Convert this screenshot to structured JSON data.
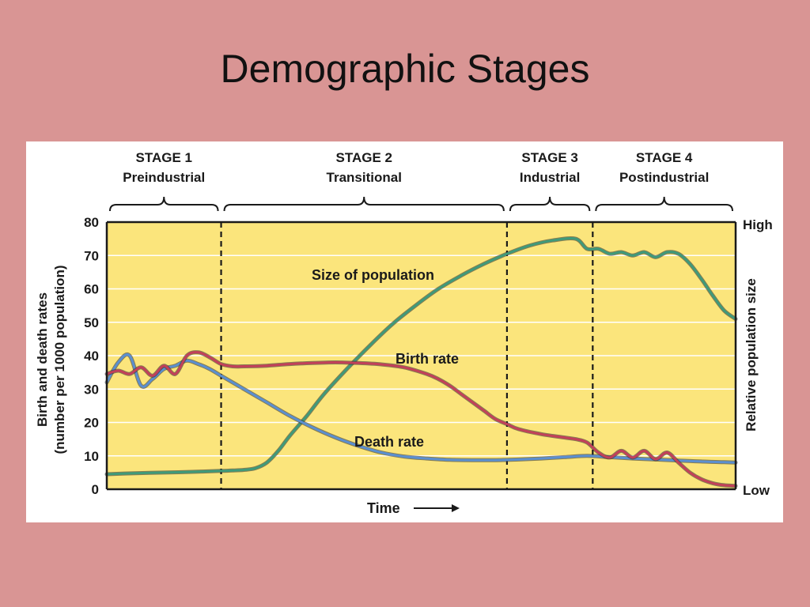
{
  "slide": {
    "title": "Demographic Stages"
  },
  "colors": {
    "plot_background": "#fbe57c",
    "grid": "#ffffff",
    "population_line": "#3f9a7a",
    "birth_rate_line": "#c2405a",
    "death_rate_line": "#5b8fd0"
  },
  "stages": [
    {
      "name": "STAGE 1",
      "label": "Preindustrial"
    },
    {
      "name": "STAGE 2",
      "label": "Transitional"
    },
    {
      "name": "STAGE 3",
      "label": "Industrial"
    },
    {
      "name": "STAGE 4",
      "label": "Postindustrial"
    }
  ],
  "chart_data": {
    "type": "line",
    "title": "",
    "xlabel": "Time",
    "ylabel": "Birth and death rates",
    "ylabel_sub": "(number per 1000 population)",
    "y2label": "Relative population size",
    "y2_ticks": [
      "High",
      "Low"
    ],
    "ylim": [
      0,
      80
    ],
    "yticks": [
      "0",
      "10",
      "20",
      "30",
      "40",
      "50",
      "60",
      "70",
      "80"
    ],
    "grid": true,
    "stage_boundaries": [
      20,
      70,
      85
    ],
    "xlim": [
      0,
      110
    ],
    "annotations": {
      "population": "Size of population",
      "birth": "Birth rate",
      "death": "Death rate"
    },
    "series": [
      {
        "key": "birth",
        "name": "Birth rate",
        "x": [
          0,
          2,
          4,
          6,
          8,
          10,
          12,
          14,
          16,
          18,
          20,
          22,
          24,
          28,
          32,
          36,
          40,
          44,
          48,
          52,
          56,
          58,
          60,
          62,
          64,
          66,
          68,
          70,
          72,
          76,
          80,
          82,
          84,
          86,
          88,
          90,
          92,
          94,
          96,
          98,
          100,
          102,
          104,
          106,
          108,
          110
        ],
        "values": [
          34.5,
          35.5,
          34.5,
          36.5,
          34,
          37,
          34.5,
          40,
          41,
          39.5,
          37.5,
          36.8,
          36.8,
          37,
          37.5,
          37.8,
          38,
          37.8,
          37.4,
          36.5,
          34.5,
          33,
          31,
          28.5,
          26,
          23.5,
          21,
          19.5,
          18,
          16.5,
          15.5,
          15,
          14,
          11,
          9.5,
          11.5,
          9.5,
          11.5,
          9,
          11,
          8,
          5,
          3,
          1.8,
          1.2,
          1
        ]
      },
      {
        "key": "death",
        "name": "Death rate",
        "x": [
          0,
          2,
          4,
          6,
          8,
          10,
          12,
          14,
          16,
          18,
          20,
          24,
          28,
          32,
          36,
          40,
          44,
          48,
          52,
          56,
          60,
          64,
          68,
          72,
          76,
          80,
          84,
          88,
          92,
          96,
          100,
          104,
          108,
          110
        ],
        "values": [
          32,
          38,
          40,
          31,
          33,
          36,
          37,
          38.5,
          37.5,
          36,
          34,
          30,
          26,
          22,
          18.5,
          15.5,
          13,
          11,
          9.8,
          9.2,
          8.8,
          8.7,
          8.7,
          8.9,
          9.2,
          9.6,
          10,
          9.6,
          9.2,
          8.9,
          8.6,
          8.3,
          8.1,
          8
        ]
      },
      {
        "key": "population",
        "name": "Size of population",
        "x": [
          0,
          5,
          10,
          15,
          20,
          22,
          24,
          26,
          28,
          30,
          32,
          35,
          38,
          42,
          46,
          50,
          54,
          58,
          62,
          66,
          70,
          74,
          78,
          82,
          84,
          86,
          88,
          90,
          92,
          94,
          96,
          98,
          100,
          102,
          104,
          106,
          108,
          110
        ],
        "values": [
          4.5,
          4.8,
          5,
          5.2,
          5.5,
          5.6,
          5.8,
          6.3,
          8,
          11.5,
          16,
          22,
          28.5,
          36,
          43,
          49.5,
          55,
          60,
          64,
          67.5,
          70.5,
          73,
          74.5,
          75,
          72,
          72,
          70.5,
          71,
          70,
          71,
          69.5,
          71,
          70.5,
          67.5,
          63,
          58,
          53.5,
          51
        ]
      }
    ]
  }
}
